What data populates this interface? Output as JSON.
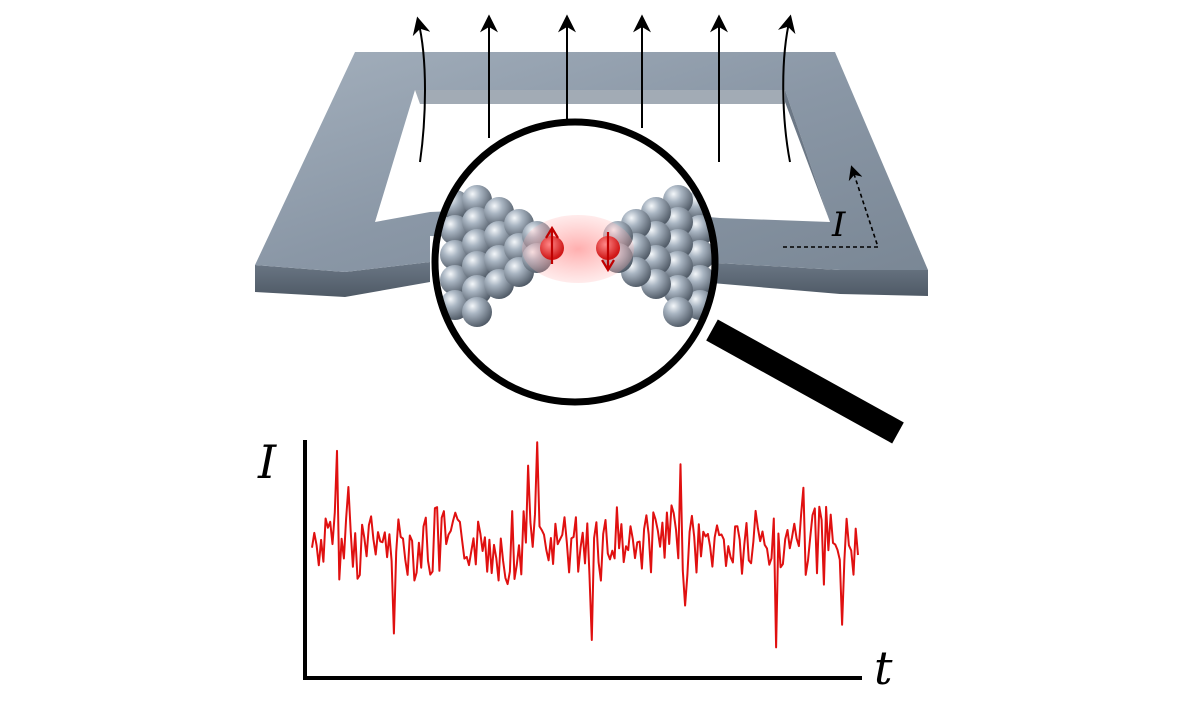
{
  "diagram": {
    "loop_current_label": "I",
    "plot": {
      "y_axis_label": "I",
      "x_axis_label": "t"
    }
  },
  "colors": {
    "loop_top": "#8a97a6",
    "loop_edge": "#5f6b79",
    "signal": "#e01010",
    "atom": "#9aa7b5",
    "spin": "#e53030"
  }
}
